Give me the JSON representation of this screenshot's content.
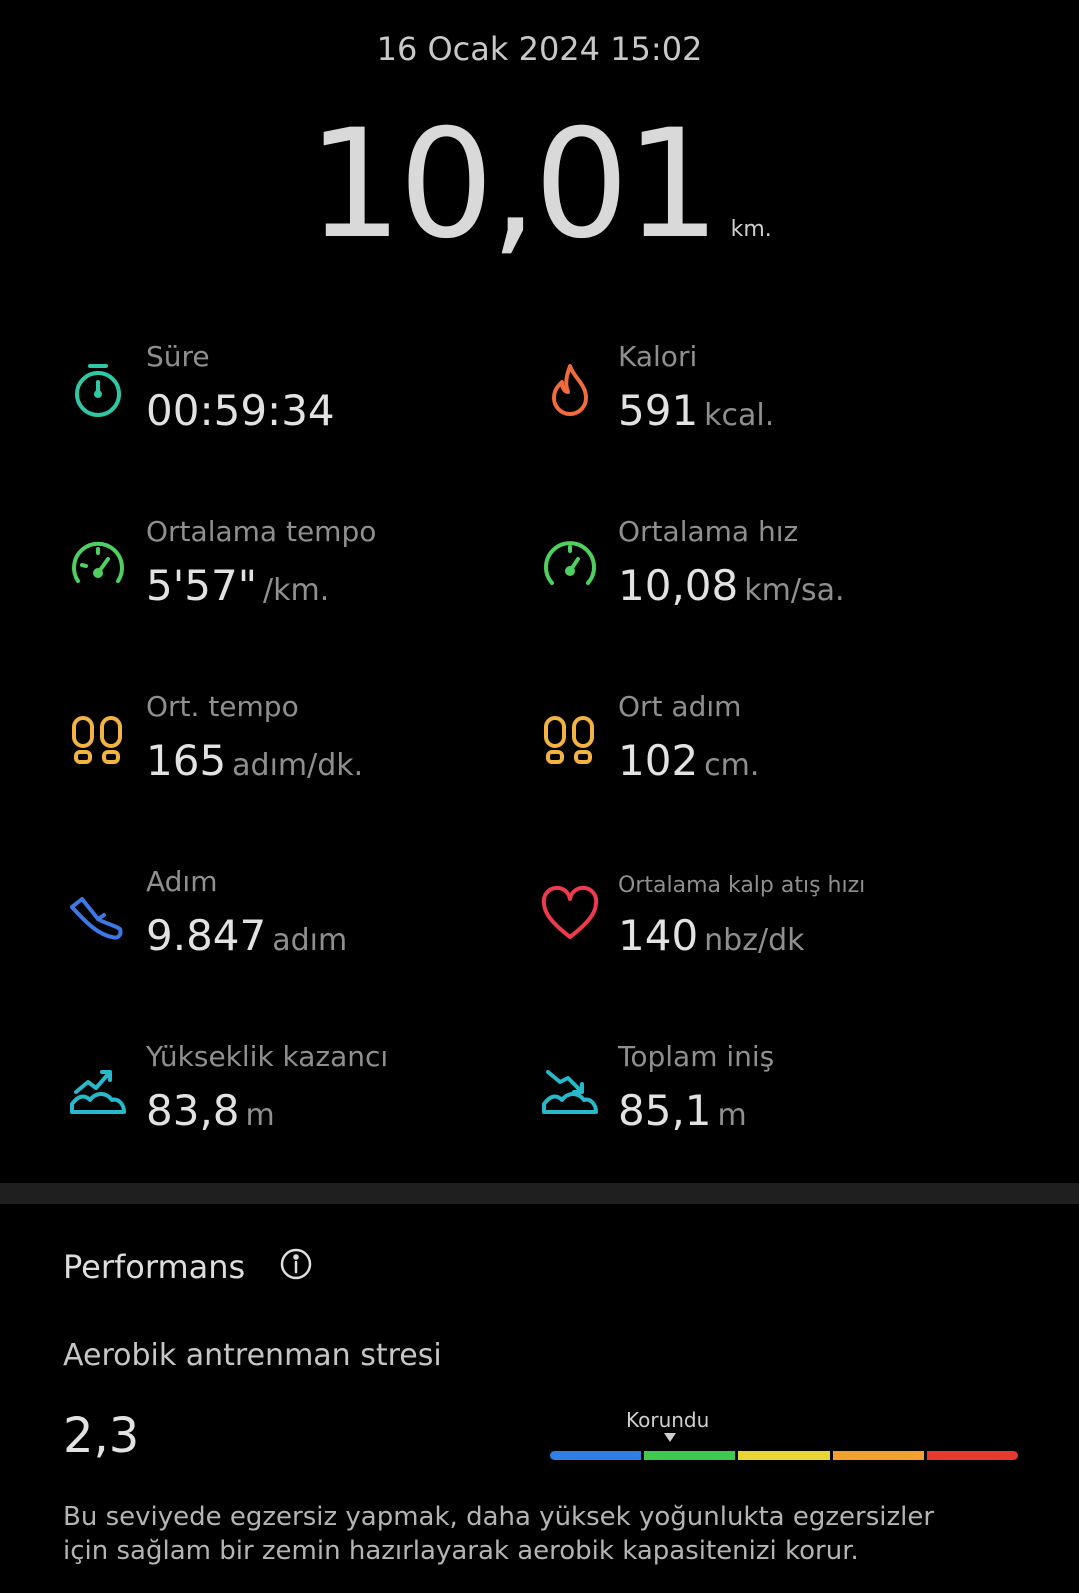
{
  "header": {
    "date": "16 Ocak 2024 15:02",
    "distance": "10,01",
    "distance_unit": "km."
  },
  "metrics": [
    {
      "label": "Süre",
      "value": "00:59:34",
      "unit": "",
      "icon": "stopwatch-icon",
      "color": "#2fc7a4"
    },
    {
      "label": "Kalori",
      "value": "591",
      "unit": "kcal.",
      "icon": "flame-icon",
      "color": "#f26b3c"
    },
    {
      "label": "Ortalama tempo",
      "value": "5'57\"",
      "unit": "/km.",
      "icon": "speedometer-icon",
      "color": "#4fcf5f"
    },
    {
      "label": "Ortalama hız",
      "value": "10,08",
      "unit": "km/sa.",
      "icon": "speedometer-icon",
      "color": "#4fcf5f"
    },
    {
      "label": "Ort. tempo",
      "value": "165",
      "unit": "adım/dk.",
      "icon": "footprints-icon",
      "color": "#f3b341"
    },
    {
      "label": "Ort adım",
      "value": "102",
      "unit": "cm.",
      "icon": "footprints-icon",
      "color": "#f3b341"
    },
    {
      "label": "Adım",
      "value": "9.847",
      "unit": "adım",
      "icon": "shoe-icon",
      "color": "#3d78e6"
    },
    {
      "label": "Ortalama kalp atış hızı",
      "value": "140",
      "unit": "nbz/dk",
      "icon": "heart-icon",
      "color": "#ee3a4c"
    },
    {
      "label": "Yükseklik kazancı",
      "value": "83,8",
      "unit": "m",
      "icon": "elevation-gain-icon",
      "color": "#27b9c9"
    },
    {
      "label": "Toplam iniş",
      "value": "85,1",
      "unit": "m",
      "icon": "elevation-loss-icon",
      "color": "#27b9c9"
    }
  ],
  "performance": {
    "title": "Performans",
    "aerobic_label": "Aerobik antrenman stresi",
    "aerobic_value": "2,3",
    "scale_label": "Korundu",
    "scale_colors": [
      "#2f7fe6",
      "#3fca4f",
      "#e9d634",
      "#f2a12e",
      "#e8392e"
    ],
    "description": "Bu seviyede egzersiz yapmak, daha yüksek yoğunlukta egzersizler için sağlam bir zemin hazırlayarak aerobik kapasitenizi korur."
  }
}
